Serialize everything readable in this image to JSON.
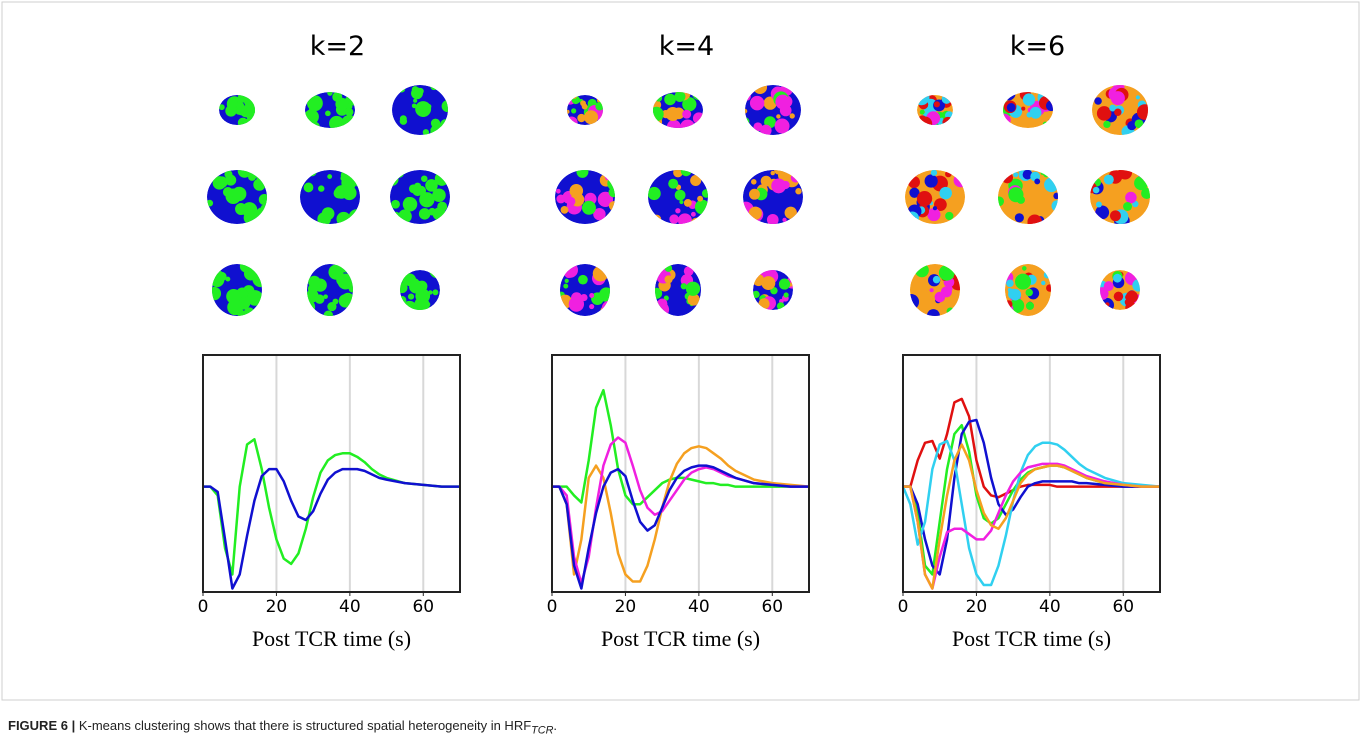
{
  "figure": {
    "label": "FIGURE 6 |",
    "caption": "K-means clustering shows that there is structured spatial heterogeneity in HRF",
    "caption_sub": "TCR",
    "caption_end": "."
  },
  "chart_data": [
    {
      "type": "line",
      "title": "k=2",
      "x_label": "Post TCR time (s)",
      "xlim": [
        0,
        70
      ],
      "xticks": [
        0,
        20,
        40,
        60
      ],
      "ylim": [
        -0.6,
        0.75
      ],
      "grid": "x",
      "x": [
        0,
        2,
        4,
        6,
        8,
        10,
        12,
        14,
        16,
        18,
        20,
        22,
        24,
        26,
        28,
        30,
        32,
        34,
        36,
        38,
        40,
        42,
        44,
        46,
        48,
        50,
        55,
        60,
        65,
        70
      ],
      "series": [
        {
          "color": "#22ee22",
          "values": [
            0,
            0,
            -0.05,
            -0.35,
            -0.5,
            0,
            0.24,
            0.27,
            0.1,
            -0.12,
            -0.3,
            -0.41,
            -0.44,
            -0.38,
            -0.24,
            -0.06,
            0.08,
            0.15,
            0.18,
            0.19,
            0.19,
            0.17,
            0.14,
            0.1,
            0.07,
            0.05,
            0.02,
            0.01,
            0,
            0
          ]
        },
        {
          "color": "#1010d0",
          "values": [
            0,
            0,
            -0.03,
            -0.3,
            -0.58,
            -0.5,
            -0.28,
            -0.08,
            0.06,
            0.1,
            0.1,
            0.03,
            -0.08,
            -0.17,
            -0.19,
            -0.14,
            -0.04,
            0.04,
            0.08,
            0.1,
            0.1,
            0.1,
            0.09,
            0.07,
            0.05,
            0.04,
            0.02,
            0.01,
            0,
            0
          ]
        }
      ]
    },
    {
      "type": "line",
      "title": "k=4",
      "x_label": "Post TCR time (s)",
      "xlim": [
        0,
        70
      ],
      "xticks": [
        0,
        20,
        40,
        60
      ],
      "ylim": [
        -0.6,
        0.75
      ],
      "grid": "x",
      "x": [
        0,
        2,
        4,
        6,
        8,
        10,
        12,
        14,
        16,
        18,
        20,
        22,
        24,
        26,
        28,
        30,
        32,
        34,
        36,
        38,
        40,
        42,
        44,
        46,
        48,
        50,
        55,
        60,
        65,
        70
      ],
      "series": [
        {
          "color": "#22ee22",
          "values": [
            0,
            0,
            0,
            -0.05,
            -0.09,
            0.15,
            0.45,
            0.55,
            0.35,
            0.1,
            -0.05,
            -0.1,
            -0.1,
            -0.06,
            -0.02,
            0.02,
            0.04,
            0.05,
            0.05,
            0.04,
            0.03,
            0.02,
            0.02,
            0.01,
            0.01,
            0,
            0,
            0,
            0,
            0
          ]
        },
        {
          "color": "#f5a020",
          "values": [
            0,
            0,
            -0.1,
            -0.5,
            -0.3,
            0.05,
            0.12,
            0.05,
            -0.15,
            -0.38,
            -0.5,
            -0.54,
            -0.54,
            -0.45,
            -0.3,
            -0.12,
            0.03,
            0.13,
            0.19,
            0.22,
            0.23,
            0.22,
            0.19,
            0.16,
            0.12,
            0.09,
            0.04,
            0.02,
            0.01,
            0
          ]
        },
        {
          "color": "#f020e0",
          "values": [
            0,
            0,
            -0.05,
            -0.4,
            -0.55,
            -0.4,
            -0.12,
            0.12,
            0.24,
            0.28,
            0.25,
            0.12,
            -0.02,
            -0.12,
            -0.16,
            -0.14,
            -0.08,
            -0.02,
            0.04,
            0.08,
            0.1,
            0.11,
            0.1,
            0.08,
            0.06,
            0.05,
            0.02,
            0.01,
            0,
            0
          ]
        },
        {
          "color": "#1010d0",
          "values": [
            0,
            0,
            -0.1,
            -0.45,
            -0.58,
            -0.35,
            -0.15,
            0,
            0.08,
            0.1,
            0.06,
            -0.08,
            -0.2,
            -0.25,
            -0.22,
            -0.12,
            -0.02,
            0.05,
            0.09,
            0.11,
            0.12,
            0.12,
            0.11,
            0.09,
            0.07,
            0.05,
            0.02,
            0.01,
            0,
            0
          ]
        }
      ]
    },
    {
      "type": "line",
      "title": "k=6",
      "x_label": "Post TCR time (s)",
      "xlim": [
        0,
        70
      ],
      "xticks": [
        0,
        20,
        40,
        60
      ],
      "ylim": [
        -0.6,
        0.75
      ],
      "grid": "x",
      "x": [
        0,
        2,
        4,
        6,
        8,
        10,
        12,
        14,
        16,
        18,
        20,
        22,
        24,
        26,
        28,
        30,
        32,
        34,
        36,
        38,
        40,
        42,
        44,
        46,
        48,
        50,
        55,
        60,
        65,
        70
      ],
      "series": [
        {
          "color": "#e01010",
          "values": [
            0,
            0,
            0.15,
            0.25,
            0.26,
            0.16,
            0.3,
            0.48,
            0.5,
            0.4,
            0.15,
            0,
            -0.05,
            -0.06,
            -0.04,
            -0.02,
            0,
            0.01,
            0.01,
            0.01,
            0.01,
            0,
            0,
            0,
            0,
            0,
            0,
            0,
            0,
            0
          ]
        },
        {
          "color": "#22ee22",
          "values": [
            0,
            0,
            -0.15,
            -0.45,
            -0.5,
            -0.2,
            0.1,
            0.3,
            0.35,
            0.2,
            -0.05,
            -0.18,
            -0.21,
            -0.18,
            -0.1,
            -0.02,
            0.04,
            0.08,
            0.1,
            0.11,
            0.12,
            0.12,
            0.11,
            0.09,
            0.07,
            0.05,
            0.02,
            0.01,
            0,
            0
          ]
        },
        {
          "color": "#1010d0",
          "values": [
            0,
            0,
            -0.1,
            -0.3,
            -0.45,
            -0.5,
            -0.3,
            0.05,
            0.3,
            0.37,
            0.38,
            0.25,
            0.05,
            -0.1,
            -0.16,
            -0.13,
            -0.06,
            0,
            0.02,
            0.03,
            0.03,
            0.03,
            0.03,
            0.03,
            0.02,
            0.02,
            0.01,
            0,
            0,
            0
          ]
        },
        {
          "color": "#30d0f0",
          "values": [
            0,
            -0.1,
            -0.33,
            -0.2,
            0.1,
            0.24,
            0.26,
            0.15,
            -0.1,
            -0.35,
            -0.5,
            -0.56,
            -0.56,
            -0.45,
            -0.28,
            -0.08,
            0.08,
            0.18,
            0.23,
            0.25,
            0.25,
            0.24,
            0.21,
            0.17,
            0.13,
            0.1,
            0.05,
            0.02,
            0.01,
            0
          ]
        },
        {
          "color": "#f020e0",
          "values": [
            0,
            0,
            -0.2,
            -0.5,
            -0.58,
            -0.4,
            -0.26,
            -0.24,
            -0.24,
            -0.27,
            -0.3,
            -0.3,
            -0.25,
            -0.15,
            -0.05,
            0.03,
            0.08,
            0.11,
            0.12,
            0.13,
            0.13,
            0.13,
            0.12,
            0.1,
            0.08,
            0.06,
            0.03,
            0.01,
            0,
            0
          ]
        },
        {
          "color": "#f5a020",
          "values": [
            0,
            0,
            -0.2,
            -0.5,
            -0.58,
            -0.3,
            -0.05,
            0.15,
            0.24,
            0.15,
            -0.02,
            -0.15,
            -0.22,
            -0.24,
            -0.18,
            -0.08,
            0.02,
            0.07,
            0.1,
            0.11,
            0.12,
            0.12,
            0.11,
            0.09,
            0.07,
            0.05,
            0.02,
            0.01,
            0,
            0
          ]
        }
      ]
    }
  ]
}
